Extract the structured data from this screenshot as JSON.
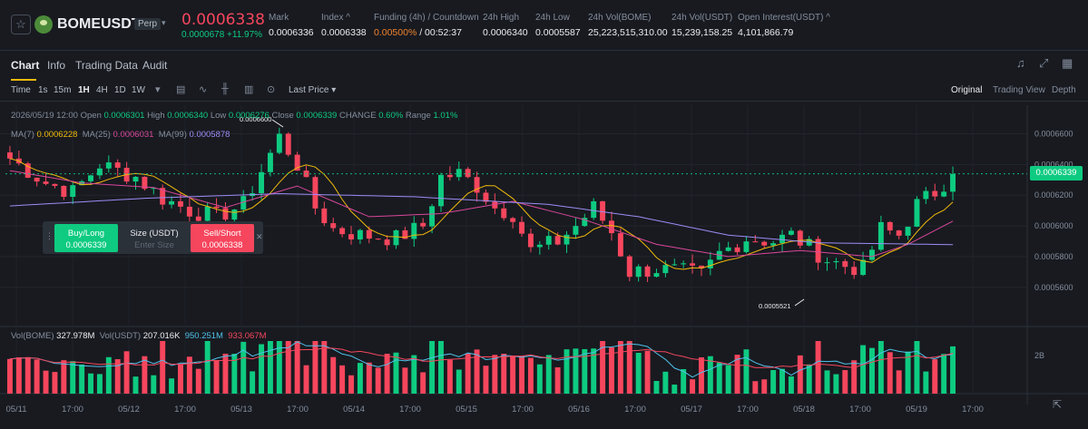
{
  "header": {
    "symbol": "BOMEUSDT",
    "contract_type": "Perp",
    "last_price": "0.0006338",
    "change": "0.0000678 +11.97%",
    "stats": [
      {
        "label": "Mark",
        "value": "0.0006336"
      },
      {
        "label": "Index ^",
        "value": "0.0006338"
      },
      {
        "label": "Funding (4h) / Countdown",
        "value_a": "0.00500%",
        "value_b": " / 00:52:37"
      },
      {
        "label": "24h High",
        "value": "0.0006340"
      },
      {
        "label": "24h Low",
        "value": "0.0005587"
      },
      {
        "label": "24h Vol(BOME)",
        "value": "25,223,515,310.00"
      },
      {
        "label": "24h Vol(USDT)",
        "value": "15,239,158.25"
      },
      {
        "label": "Open Interest(USDT) ^",
        "value": "4,101,866.79"
      }
    ]
  },
  "tabs": [
    "Chart",
    "Info",
    "Trading Data",
    "Audit"
  ],
  "toolbar": {
    "time_label": "Time",
    "intervals": [
      "1s",
      "15m",
      "1H",
      "4H",
      "1D",
      "1W"
    ],
    "active_interval": "1H",
    "price_type": "Last Price",
    "views": [
      "Original",
      "Trading View",
      "Depth"
    ],
    "active_view": "Original"
  },
  "ohlc_legend": {
    "date": "2026/05/19 12:00",
    "open_label": "Open",
    "open": "0.0006301",
    "high_label": "High",
    "high": "0.0006340",
    "low_label": "Low",
    "low": "0.0006276",
    "close_label": "Close",
    "close": "0.0006339",
    "change_label": "CHANGE",
    "change": "0.60%",
    "range_label": "Range",
    "range": "1.01%"
  },
  "ma_legend": {
    "ma7_label": "MA(7)",
    "ma7": "0.0006228",
    "ma25_label": "MA(25)",
    "ma25": "0.0006031",
    "ma99_label": "MA(99)",
    "ma99": "0.0005878"
  },
  "volume_legend": {
    "vol_label": "Vol(BOME)",
    "vol": "327.978M",
    "volusdt_label": "Vol(USDT)",
    "volusdt": "207.016K",
    "v1": "950.251M",
    "v2": "933.067M"
  },
  "order_panel": {
    "buy_label": "Buy/Long",
    "buy_price": "0.0006339",
    "size_label": "Size (USDT)",
    "size_placeholder": "Enter Size",
    "sell_label": "Sell/Short",
    "sell_price": "0.0006338"
  },
  "current_price_tag": "0.0006339",
  "colors": {
    "up": "#0ecb81",
    "down": "#f6465d",
    "ma7": "#f0b90b",
    "ma25": "#d9479a",
    "ma99": "#9d8cf5",
    "accent": "#f0b90b"
  },
  "chart_data": {
    "type": "candlestick",
    "y_ticks": [
      "0.0006600",
      "0.0006400",
      "0.0006200",
      "0.0006000",
      "0.0005800",
      "0.0005600"
    ],
    "ylim": [
      0.000551,
      0.000668
    ],
    "x_ticks": [
      "05/11",
      "17:00",
      "05/12",
      "17:00",
      "05/13",
      "17:00",
      "05/14",
      "17:00",
      "05/15",
      "17:00",
      "05/16",
      "17:00",
      "05/17",
      "17:00",
      "05/18",
      "17:00",
      "05/19",
      "17:00"
    ],
    "volume_tick": "2B",
    "annotations": {
      "high": "0.0006600",
      "low": "0.0005521"
    },
    "close_path": [
      [
        0,
        0.000644
      ],
      [
        4,
        0.000628
      ],
      [
        7,
        0.000622
      ],
      [
        10,
        0.00064
      ],
      [
        14,
        0.000632
      ],
      [
        17,
        0.000618
      ],
      [
        20,
        0.00061
      ],
      [
        23,
        0.000606
      ],
      [
        26,
        0.000614
      ],
      [
        28,
        0.000636
      ],
      [
        30,
        0.000658
      ],
      [
        32,
        0.00064
      ],
      [
        34,
        0.000612
      ],
      [
        36,
        0.000598
      ],
      [
        39,
        0.000594
      ],
      [
        43,
        0.000592
      ],
      [
        46,
        0.0006
      ],
      [
        48,
        0.000632
      ],
      [
        50,
        0.000634
      ],
      [
        52,
        0.000626
      ],
      [
        54,
        0.000612
      ],
      [
        56,
        0.000608
      ],
      [
        58,
        0.000584
      ],
      [
        61,
        0.00059
      ],
      [
        63,
        0.0006
      ],
      [
        65,
        0.000612
      ],
      [
        67,
        0.000596
      ],
      [
        69,
        0.00057
      ],
      [
        72,
        0.000572
      ],
      [
        75,
        0.00057
      ],
      [
        77,
        0.000568
      ],
      [
        79,
        0.000582
      ],
      [
        82,
        0.000592
      ],
      [
        85,
        0.00059
      ],
      [
        87,
        0.000594
      ],
      [
        89,
        0.000586
      ],
      [
        91,
        0.000578
      ],
      [
        93,
        0.000574
      ],
      [
        95,
        0.000572
      ],
      [
        97,
        0.000598
      ],
      [
        99,
        0.000594
      ],
      [
        101,
        0.000614
      ],
      [
        103,
        0.000622
      ],
      [
        104,
        0.000628
      ],
      [
        105,
        0.0006339
      ]
    ],
    "ma25_path": [
      [
        0,
        0.000636
      ],
      [
        8,
        0.000628
      ],
      [
        16,
        0.000625
      ],
      [
        24,
        0.000612
      ],
      [
        32,
        0.000626
      ],
      [
        40,
        0.000606
      ],
      [
        48,
        0.000608
      ],
      [
        56,
        0.000616
      ],
      [
        64,
        0.000604
      ],
      [
        72,
        0.000588
      ],
      [
        80,
        0.00058
      ],
      [
        88,
        0.000584
      ],
      [
        96,
        0.00058
      ],
      [
        100,
        0.000588
      ],
      [
        105,
        0.0006031
      ]
    ],
    "ma99_path": [
      [
        0,
        0.000613
      ],
      [
        15,
        0.000618
      ],
      [
        30,
        0.000621
      ],
      [
        45,
        0.000619
      ],
      [
        60,
        0.000614
      ],
      [
        70,
        0.000606
      ],
      [
        80,
        0.000594
      ],
      [
        90,
        0.000589
      ],
      [
        105,
        0.0005878
      ]
    ]
  }
}
